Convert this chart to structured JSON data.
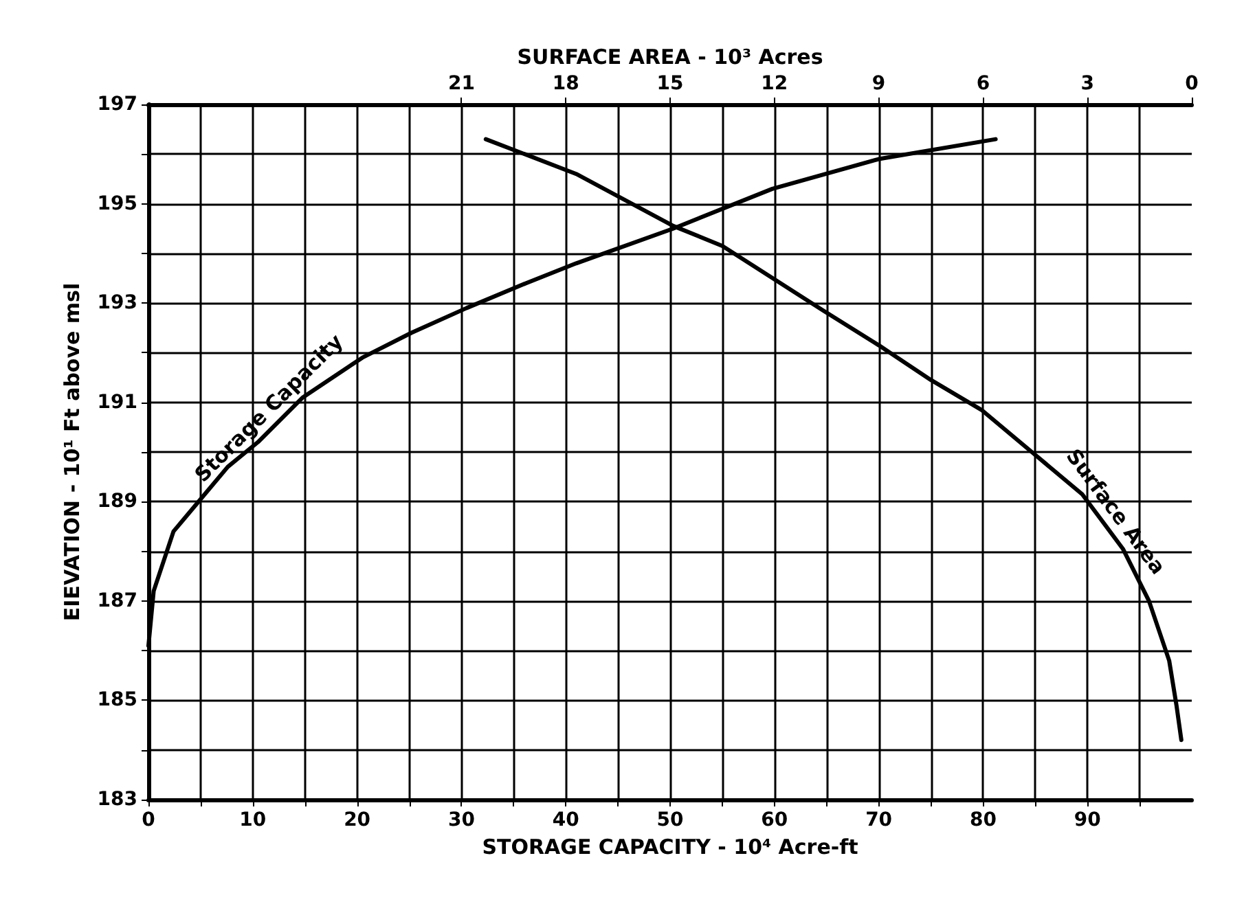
{
  "chart_data": {
    "type": "line",
    "xlabel": "STORAGE CAPACITY - 10⁴ Acre-ft",
    "x2label": "SURFACE AREA - 10³ Acres",
    "ylabel": "EIEVATION - 10¹ Ft above msl",
    "xlim": [
      0,
      100
    ],
    "xticks": [
      0,
      {
        "value": 5,
        "label": null
      },
      10,
      {
        "value": 15,
        "label": null
      },
      20,
      {
        "value": 25,
        "label": null
      },
      30,
      {
        "value": 35,
        "label": null
      },
      40,
      {
        "value": 45,
        "label": null
      },
      50,
      {
        "value": 55,
        "label": null
      },
      60,
      {
        "value": 65,
        "label": null
      },
      70,
      {
        "value": 75,
        "label": null
      },
      80,
      {
        "value": 85,
        "label": null
      },
      90,
      {
        "value": 95,
        "label": null
      }
    ],
    "x2lim": [
      30,
      0
    ],
    "x2ticks": [
      21,
      18,
      15,
      12,
      9,
      6,
      3,
      0
    ],
    "ylim": [
      183,
      197
    ],
    "yticks": [
      183,
      {
        "value": 184,
        "label": null
      },
      185,
      {
        "value": 186,
        "label": null
      },
      187,
      {
        "value": 188,
        "label": null
      },
      189,
      {
        "value": 190,
        "label": null
      },
      191,
      {
        "value": 192,
        "label": null
      },
      193,
      {
        "value": 194,
        "label": null
      },
      195,
      {
        "value": 196,
        "label": null
      },
      197
    ],
    "grid": true,
    "legend": false,
    "marker": "none",
    "line_style": "solid",
    "series": [
      {
        "name": "Storage Capacity",
        "color": "#000000",
        "x": [
          0,
          0.5,
          2.4,
          4.8,
          7.6,
          10.5,
          14.8,
          20.5,
          25.2,
          30.5,
          36.2,
          41,
          50.3,
          59.8,
          70,
          81.2
        ],
        "values": [
          186.1,
          187.2,
          188.4,
          189,
          189.7,
          190.2,
          191.1,
          191.9,
          192.4,
          192.9,
          193.4,
          193.8,
          194.5,
          195.3,
          195.9,
          196.3
        ]
      },
      {
        "name": "Surface Area",
        "color": "#000000",
        "axis": "x2",
        "x": [
          20.3,
          17.7,
          14.9,
          13.5,
          10.6,
          9,
          7.5,
          6.05,
          4.6,
          3.15,
          1.98,
          1.23,
          0.65,
          0.44,
          0.3
        ],
        "values": [
          196.3,
          195.6,
          194.55,
          194.15,
          192.85,
          192.15,
          191.45,
          190.85,
          190,
          189.15,
          188.05,
          187,
          185.8,
          184.9,
          184.2
        ]
      }
    ]
  }
}
